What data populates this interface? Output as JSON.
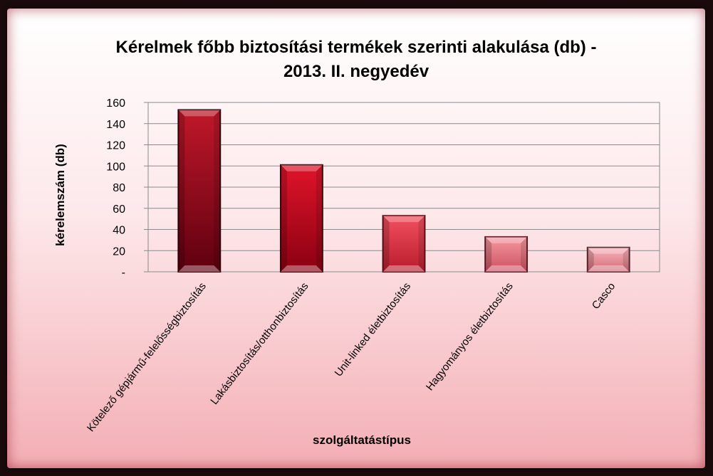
{
  "chart_data": {
    "type": "bar",
    "title_lines": [
      "Kérelmek főbb biztosítási termékek szerinti alakulása (db) -",
      "2013. II. negyedév"
    ],
    "xlabel": "szolgáltatástípus",
    "ylabel": "kérelemszám (db)",
    "categories": [
      "Kötelező gépjármű-felelősségbiztosítás",
      "Lakásbiztosítás/otthonbiztosítás",
      "Unit-linked életbiztosítás",
      "Hagyományos életbiztosítás",
      "Casco"
    ],
    "values": [
      153,
      101,
      53,
      33,
      23
    ],
    "ylim": [
      0,
      160
    ],
    "yticks": [
      0,
      20,
      40,
      60,
      80,
      100,
      120,
      140,
      160
    ],
    "ytick_labels": [
      "-",
      "20",
      "40",
      "60",
      "80",
      "100",
      "120",
      "140",
      "160"
    ],
    "grid": true,
    "legend": "none",
    "bar_colors": [
      {
        "top": "#c0182a",
        "mid": "#a00a1e",
        "dark": "#5e0010",
        "edge": "#3a0008"
      },
      {
        "top": "#e0142a",
        "mid": "#c8061c",
        "dark": "#8a0012",
        "edge": "#4a0008"
      },
      {
        "top": "#f25060",
        "mid": "#e63a4a",
        "dark": "#b81c2c",
        "edge": "#5a1018"
      },
      {
        "top": "#f59aa2",
        "mid": "#ee7a86",
        "dark": "#cc5060",
        "edge": "#5a2028"
      },
      {
        "top": "#f8b4ba",
        "mid": "#f2949e",
        "dark": "#d26c78",
        "edge": "#5a2a30"
      }
    ]
  }
}
